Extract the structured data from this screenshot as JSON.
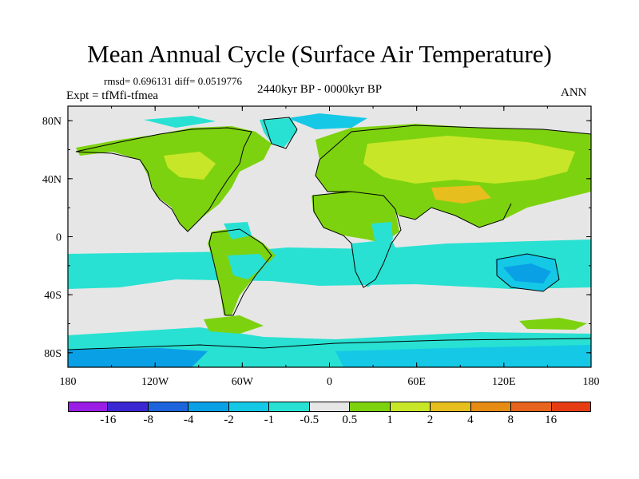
{
  "figure": {
    "title": "Mean Annual Cycle (Surface Air Temperature)",
    "stats": "rmsd= 0.696131 diff= 0.0519776",
    "experiment": "Expt = tfMfi-tfmea",
    "period": "2440kyr BP - 0000kyr BP",
    "season": "ANN"
  },
  "axes": {
    "lat_ticks": [
      "80N",
      "40N",
      "0",
      "40S",
      "80S"
    ],
    "lon_ticks": [
      "180",
      "120W",
      "60W",
      "0",
      "60E",
      "120E",
      "180"
    ]
  },
  "colorbar": {
    "colors": [
      "#9b1ee6",
      "#3c28d2",
      "#1e64dc",
      "#0aa0e6",
      "#14c8e6",
      "#28e1d2",
      "#e6e6e6",
      "#7dd20f",
      "#c8e628",
      "#e6be1e",
      "#e68c14",
      "#e6641e",
      "#e63c14"
    ],
    "labels": [
      "-16",
      "-8",
      "-4",
      "-2",
      "-1",
      "-0.5",
      "0.5",
      "1",
      "2",
      "4",
      "8",
      "16"
    ]
  },
  "map_colors": {
    "ocean_neutral": "#e6e6e6",
    "green": "#7dd20f",
    "yellow_green": "#c8e628",
    "orange": "#e6be1e",
    "cyan": "#14c8e6",
    "light_cyan": "#28e1d2",
    "blue": "#0aa0e6"
  }
}
